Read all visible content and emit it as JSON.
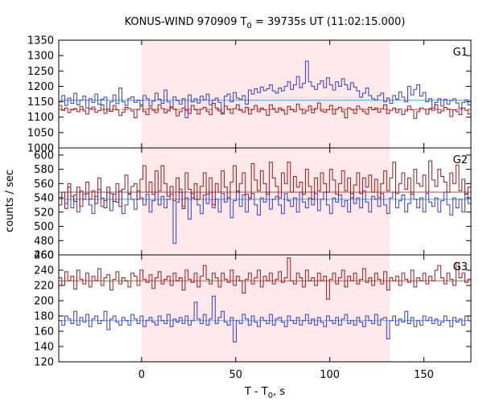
{
  "chart_data": {
    "type": "line",
    "title_pre": "KONUS-WIND 970909 T",
    "title_sub": "0",
    "title_post": " = 39735s UT (11:02:15.000)",
    "xlabel_pre": "T - T",
    "xlabel_sub": "0",
    "xlabel_post": ", s",
    "ylabel": "counts / sec",
    "xlim": [
      -44,
      175
    ],
    "xticks": [
      0,
      50,
      100,
      150
    ],
    "shaded_interval": [
      0,
      132
    ],
    "colors": {
      "series_a": "#9b1b1b",
      "series_b": "#3a3ac8",
      "background_fit_a": "#e06060",
      "background_fit_b": "#5fb8e8",
      "shade": "#fde8ea"
    },
    "panels": [
      {
        "label": "G1",
        "ylim": [
          1000,
          1350
        ],
        "yticks": [
          1000,
          1050,
          1100,
          1150,
          1200,
          1250,
          1300,
          1350
        ],
        "bg_a": 1125,
        "bg_b": 1155,
        "series_a": [
          1138,
          1122,
          1130,
          1115,
          1124,
          1128,
          1118,
          1135,
          1120,
          1110,
          1128,
          1133,
          1116,
          1121,
          1140,
          1112,
          1126,
          1119,
          1138,
          1124,
          1105,
          1116,
          1132,
          1128,
          1120,
          1098,
          1125,
          1136,
          1118,
          1108,
          1130,
          1122,
          1115,
          1140,
          1128,
          1114,
          1120,
          1134,
          1126,
          1104,
          1118,
          1130,
          1122,
          1112,
          1138,
          1124,
          1110,
          1126,
          1132,
          1118,
          1108,
          1145,
          1130,
          1120,
          1114,
          1136,
          1126,
          1112,
          1128,
          1140,
          1122,
          1116,
          1132,
          1110,
          1125,
          1138,
          1118,
          1130,
          1124,
          1106,
          1140,
          1128,
          1116,
          1130,
          1122,
          1110,
          1135,
          1124,
          1118,
          1142,
          1126,
          1112,
          1120,
          1136,
          1114,
          1128,
          1146,
          1120,
          1116,
          1124,
          1138,
          1110,
          1126,
          1132,
          1118,
          1098,
          1130,
          1124,
          1112,
          1136,
          1126,
          1118,
          1110,
          1132,
          1124,
          1130,
          1116,
          1128,
          1140,
          1112,
          1122,
          1130,
          1115,
          1126,
          1108,
          1120,
          1136,
          1124,
          1096,
          1118,
          1130,
          1126,
          1110,
          1128,
          1122,
          1140,
          1114,
          1120,
          1132,
          1126,
          1102,
          1124,
          1118,
          1108,
          1130,
          1122,
          1110
        ],
        "series_b": [
          1150,
          1170,
          1138,
          1162,
          1145,
          1178,
          1140,
          1155,
          1168,
          1130,
          1160,
          1148,
          1175,
          1142,
          1158,
          1165,
          1120,
          1150,
          1172,
          1144,
          1195,
          1150,
          1138,
          1160,
          1166,
          1148,
          1155,
          1140,
          1170,
          1160,
          1136,
          1152,
          1178,
          1158,
          1145,
          1188,
          1150,
          1130,
          1166,
          1154,
          1142,
          1160,
          1098,
          1172,
          1150,
          1160,
          1146,
          1168,
          1156,
          1175,
          1140,
          1155,
          1162,
          1148,
          1110,
          1168,
          1175,
          1150,
          1180,
          1162,
          1158,
          1170,
          1142,
          1188,
          1175,
          1192,
          1180,
          1198,
          1186,
          1192,
          1205,
          1185,
          1178,
          1195,
          1185,
          1200,
          1215,
          1190,
          1205,
          1232,
          1196,
          1210,
          1282,
          1215,
          1200,
          1190,
          1208,
          1218,
          1196,
          1228,
          1205,
          1188,
          1215,
          1200,
          1225,
          1205,
          1190,
          1212,
          1198,
          1185,
          1165,
          1178,
          1195,
          1170,
          1160,
          1156,
          1170,
          1178,
          1150,
          1162,
          1145,
          1170,
          1158,
          1182,
          1165,
          1150,
          1200,
          1172,
          1190,
          1205,
          1168,
          1180,
          1150,
          1160,
          1130,
          1148,
          1160,
          1136,
          1158,
          1142,
          1154,
          1160,
          1146,
          1130,
          1148,
          1156,
          1140
        ]
      },
      {
        "label": "G2",
        "ylim": [
          460,
          610
        ],
        "yticks": [
          460,
          480,
          500,
          520,
          540,
          560,
          580,
          600
        ],
        "bg_a": 548,
        "bg_b": 538,
        "series_a": [
          530,
          548,
          525,
          560,
          542,
          535,
          555,
          528,
          545,
          562,
          538,
          550,
          532,
          568,
          540,
          526,
          555,
          546,
          535,
          560,
          528,
          552,
          572,
          545,
          556,
          560,
          538,
          566,
          585,
          548,
          562,
          545,
          578,
          550,
          585,
          560,
          542,
          556,
          536,
          568,
          548,
          525,
          575,
          552,
          540,
          560,
          538,
          556,
          575,
          545,
          568,
          530,
          560,
          548,
          578,
          555,
          540,
          562,
          585,
          548,
          560,
          575,
          545,
          540,
          588,
          565,
          550,
          578,
          560,
          545,
          590,
          568,
          556,
          540,
          575,
          560,
          590,
          548,
          570,
          555,
          562,
          545,
          580,
          556,
          538,
          568,
          550,
          575,
          560,
          548,
          580,
          565,
          545,
          560,
          578,
          550,
          568,
          540,
          558,
          575,
          546,
          568,
          555,
          572,
          548,
          566,
          540,
          560,
          578,
          550,
          568,
          590,
          546,
          560,
          575,
          552,
          568,
          545,
          580,
          560,
          556,
          572,
          548,
          592,
          565,
          556,
          580,
          570,
          562,
          548,
          575,
          560,
          586,
          550,
          566,
          545,
          555
        ],
        "series_b": [
          540,
          548,
          532,
          555,
          526,
          544,
          520,
          550,
          538,
          546,
          530,
          518,
          542,
          552,
          528,
          536,
          548,
          522,
          545,
          534,
          550,
          518,
          530,
          546,
          538,
          524,
          550,
          540,
          530,
          545,
          520,
          536,
          548,
          530,
          542,
          526,
          538,
          545,
          476,
          534,
          552,
          528,
          540,
          510,
          546,
          538,
          530,
          518,
          544,
          532,
          548,
          526,
          538,
          520,
          546,
          534,
          540,
          512,
          536,
          550,
          528,
          544,
          520,
          538,
          546,
          530,
          516,
          540,
          534,
          548,
          524,
          538,
          542,
          530,
          518,
          546,
          536,
          528,
          540,
          520,
          548,
          534,
          526,
          540,
          530,
          546,
          522,
          538,
          548,
          530,
          518,
          540,
          534,
          544,
          528,
          536,
          520,
          546,
          532,
          540,
          526,
          550,
          534,
          520,
          542,
          538,
          528,
          546,
          530,
          518,
          540,
          548,
          526,
          536,
          544,
          520,
          532,
          548,
          538,
          526,
          540,
          520,
          546,
          534,
          528,
          540,
          520,
          536,
          548,
          530,
          516,
          540,
          526,
          538,
          520,
          546,
          532
        ]
      },
      {
        "label": "G3",
        "ylim": [
          120,
          260
        ],
        "yticks": [
          120,
          140,
          160,
          180,
          200,
          220,
          240,
          260
        ],
        "bg_a": 226,
        "bg_b": 174,
        "series_a": [
          230,
          220,
          238,
          226,
          232,
          215,
          240,
          228,
          222,
          236,
          218,
          232,
          226,
          242,
          220,
          230,
          234,
          214,
          228,
          238,
          222,
          230,
          226,
          218,
          236,
          232,
          220,
          240,
          228,
          224,
          234,
          216,
          230,
          238,
          222,
          228,
          232,
          220,
          236,
          226,
          230,
          214,
          240,
          228,
          224,
          236,
          218,
          232,
          246,
          228,
          222,
          236,
          230,
          218,
          236,
          228,
          224,
          240,
          220,
          232,
          226,
          210,
          228,
          236,
          222,
          230,
          240,
          218,
          232,
          226,
          236,
          222,
          228,
          238,
          224,
          230,
          256,
          226,
          222,
          236,
          230,
          218,
          240,
          226,
          230,
          220,
          236,
          226,
          232,
          202,
          228,
          236,
          222,
          230,
          240,
          218,
          232,
          226,
          236,
          222,
          228,
          242,
          224,
          230,
          220,
          236,
          228,
          222,
          238,
          214,
          230,
          226,
          232,
          220,
          236,
          228,
          224,
          240,
          218,
          230,
          226,
          236,
          222,
          232,
          226,
          240,
          246,
          230,
          222,
          236,
          228,
          220,
          250,
          230,
          236,
          224,
          228
        ],
        "series_b": [
          174,
          168,
          180,
          176,
          170,
          186,
          168,
          178,
          172,
          182,
          166,
          176,
          180,
          170,
          174,
          186,
          162,
          176,
          180,
          172,
          168,
          178,
          174,
          168,
          182,
          176,
          170,
          180,
          166,
          174,
          178,
          172,
          168,
          180,
          174,
          170,
          182,
          166,
          176,
          172,
          178,
          170,
          180,
          168,
          174,
          198,
          176,
          170,
          182,
          168,
          176,
          206,
          170,
          178,
          186,
          172,
          168,
          178,
          146,
          174,
          170,
          182,
          176,
          168,
          180,
          172,
          166,
          178,
          174,
          170,
          182,
          168,
          176,
          178,
          172,
          166,
          180,
          174,
          170,
          178,
          168,
          174,
          182,
          170,
          176,
          168,
          178,
          172,
          166,
          180,
          174,
          170,
          178,
          168,
          176,
          182,
          170,
          174,
          168,
          178,
          172,
          166,
          180,
          174,
          170,
          182,
          168,
          176,
          178,
          150,
          174,
          180,
          168,
          176,
          172,
          186,
          170,
          178,
          166,
          174,
          168,
          180,
          174,
          178,
          170,
          176,
          168,
          172,
          180,
          174,
          166,
          178,
          172,
          176,
          168,
          180,
          174
        ]
      }
    ]
  }
}
